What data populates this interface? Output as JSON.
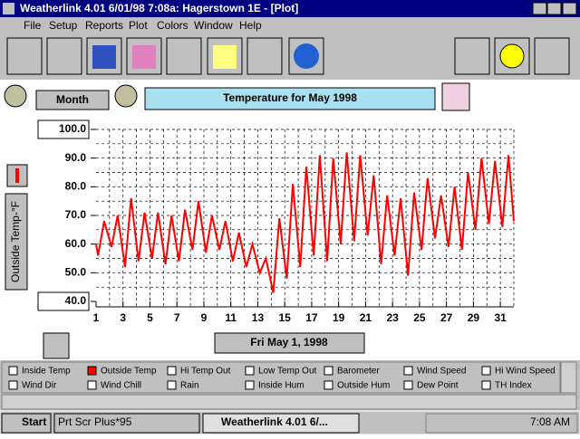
{
  "window": {
    "title": "Weatherlink 4.01   6/01/98   7:08a: Hagerstown 1E - [Plot]"
  },
  "menu": [
    "File",
    "Setup",
    "Reports",
    "Plot",
    "Colors",
    "Window",
    "Help"
  ],
  "controls": {
    "period_button": "Month",
    "plot_title": "Temperature for  May 1998",
    "date_button": "Fri May 1, 1998",
    "y_axis_label": "Outside Temp-°F"
  },
  "plot": {
    "type": "line",
    "color": "#ff0000",
    "x": [
      1,
      1.15,
      1.6,
      2.15,
      2.6,
      3.15,
      3.6,
      4.15,
      4.6,
      5.15,
      5.6,
      6.15,
      6.6,
      7.15,
      7.6,
      8.15,
      8.6,
      9.15,
      9.6,
      10.15,
      10.6,
      11.15,
      11.6,
      12.15,
      12.6,
      13.15,
      13.6,
      14.15,
      14.6,
      15.15,
      15.6,
      16.15,
      16.6,
      17.15,
      17.6,
      18.15,
      18.6,
      19.15,
      19.6,
      20.15,
      20.6,
      21.15,
      21.6,
      22.15,
      22.6,
      23.15,
      23.6,
      24.15,
      24.6,
      25.15,
      25.6,
      26.15,
      26.6,
      27.15,
      27.6,
      28.15,
      28.6,
      29.15,
      29.6,
      30.15,
      30.6,
      31.15,
      31.6,
      32
    ],
    "values": [
      60,
      56,
      68,
      59,
      70,
      52,
      76,
      54,
      71,
      55,
      71,
      53,
      70,
      54,
      72,
      58,
      75,
      57,
      70,
      58,
      68,
      54,
      64,
      52,
      60,
      50,
      55,
      43,
      69,
      48,
      81,
      52,
      87,
      56,
      91,
      54,
      90,
      60,
      92,
      61,
      91,
      63,
      84,
      53,
      77,
      56,
      76,
      49,
      78,
      58,
      83,
      62,
      77,
      59,
      80,
      58,
      85,
      65,
      90,
      67,
      89,
      66,
      91,
      68
    ],
    "xlim": [
      1,
      32
    ],
    "ylim": [
      40,
      100
    ],
    "xticks": [
      1,
      3,
      5,
      7,
      9,
      11,
      13,
      15,
      17,
      19,
      21,
      23,
      25,
      27,
      29,
      31
    ],
    "xgrid": [
      2,
      3,
      4,
      5,
      6,
      7,
      8,
      9,
      10,
      11,
      12,
      13,
      14,
      15,
      16,
      17,
      18,
      19,
      20,
      21,
      22,
      23,
      24,
      25,
      26,
      27,
      28,
      29,
      30,
      31,
      32
    ],
    "yticks": [
      {
        "value": 40,
        "label": "40.0"
      },
      {
        "value": 50,
        "label": "50.0"
      },
      {
        "value": 60,
        "label": "60.0"
      },
      {
        "value": 70,
        "label": "70.0"
      },
      {
        "value": 80,
        "label": "80.0"
      },
      {
        "value": 90,
        "label": "90.0"
      },
      {
        "value": 100,
        "label": "100.0"
      }
    ],
    "ygrid": [
      45,
      50,
      55,
      60,
      65,
      70,
      75,
      80,
      85,
      90,
      95,
      100
    ]
  },
  "checkboxes": [
    {
      "label": "Inside Temp",
      "checked": false
    },
    {
      "label": "Outside Temp",
      "checked": true
    },
    {
      "label": "Hi Temp Out",
      "checked": false
    },
    {
      "label": "Low Temp Out",
      "checked": false
    },
    {
      "label": "Barometer",
      "checked": false
    },
    {
      "label": "Wind Speed",
      "checked": false
    },
    {
      "label": "Hi Wind Speed",
      "checked": false
    },
    {
      "label": "Wind Dir",
      "checked": false
    },
    {
      "label": "Wind Chill",
      "checked": false
    },
    {
      "label": "Rain",
      "checked": false
    },
    {
      "label": "Inside Hum",
      "checked": false
    },
    {
      "label": "Outside Hum",
      "checked": false
    },
    {
      "label": "Dew Point",
      "checked": false
    },
    {
      "label": "TH Index",
      "checked": false
    }
  ],
  "taskbar": {
    "start": "Start",
    "tasks": [
      "Prt Scr Plus*95",
      "Weatherlink 4.01    6/..."
    ],
    "clock": "7:08 AM"
  }
}
